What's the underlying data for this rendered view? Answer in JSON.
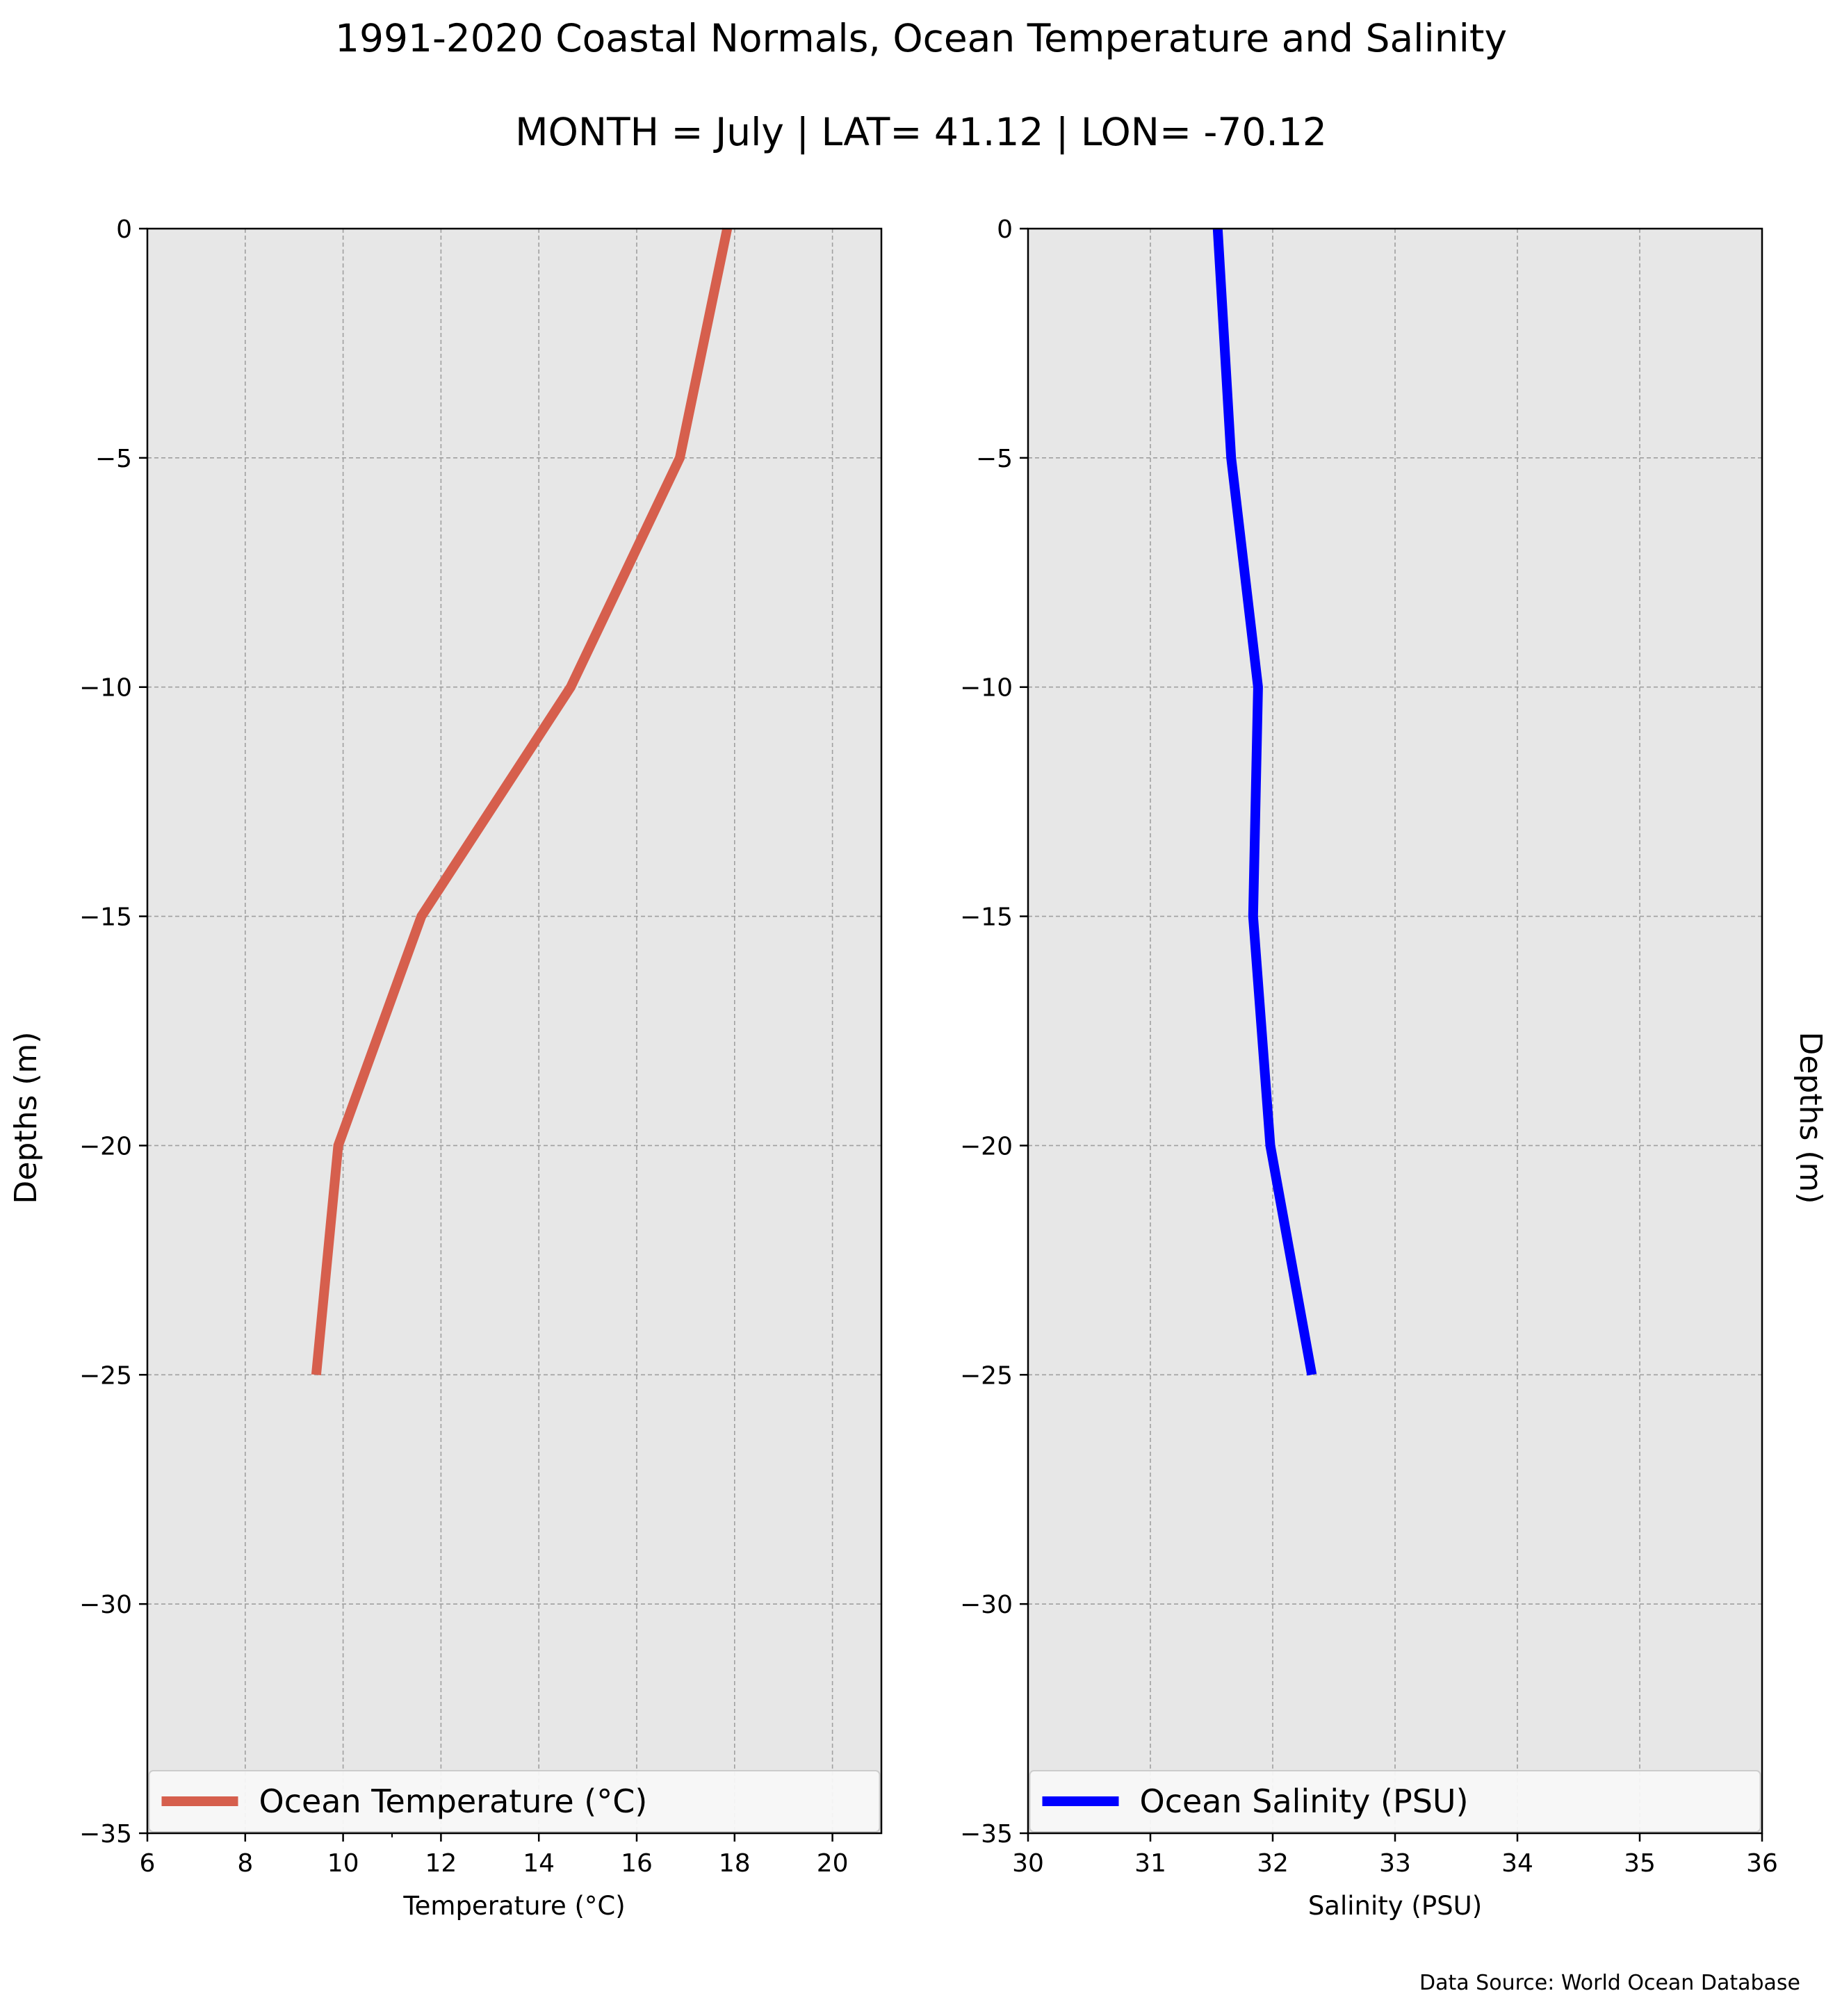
{
  "figure": {
    "title": "1991-2020 Coastal Normals, Ocean Temperature and Salinity",
    "subtitle": "MONTH = July | LAT= 41.12 | LON= -70.12",
    "source": "Data Source: World Ocean Database"
  },
  "chart_data": [
    {
      "type": "line",
      "xlabel": "Temperature ($^\\circ$C)",
      "xlabel_display": "Temperature (°C)",
      "ylabel": "Depths (m)",
      "xlim": [
        6,
        21
      ],
      "ylim": [
        -35,
        0
      ],
      "xticks": [
        6,
        8,
        10,
        12,
        14,
        16,
        18,
        20
      ],
      "xtick_labels": [
        "6",
        "8",
        "10",
        "12",
        "14",
        "16",
        "18",
        "20"
      ],
      "yticks": [
        0,
        -5,
        -10,
        -15,
        -20,
        -25,
        -30,
        -35
      ],
      "ytick_labels": [
        "0",
        "−5",
        "−10",
        "−15",
        "−20",
        "−25",
        "−30",
        "−35"
      ],
      "grid": true,
      "background": "#e7e7e7",
      "legend_position": "lower center",
      "series": [
        {
          "name": "Ocean Temperature ($^\\circ$C)",
          "legend_label": "Ocean Temperature (°C)",
          "color": "#d65f4d",
          "x": [
            17.85,
            16.88,
            14.65,
            11.6,
            9.9,
            9.45
          ],
          "y": [
            0,
            -5,
            -10,
            -15,
            -20,
            -25
          ]
        }
      ]
    },
    {
      "type": "line",
      "xlabel": "Salinity (PSU)",
      "ylabel": "Depths (m)",
      "xlim": [
        30,
        36
      ],
      "ylim": [
        -35,
        0
      ],
      "xticks": [
        30,
        31,
        32,
        33,
        34,
        35,
        36
      ],
      "xtick_labels": [
        "30",
        "31",
        "32",
        "33",
        "34",
        "35",
        "36"
      ],
      "yticks": [
        0,
        -5,
        -10,
        -15,
        -20,
        -25,
        -30,
        -35
      ],
      "ytick_labels": [
        "0",
        "−5",
        "−10",
        "−15",
        "−20",
        "−25",
        "−30",
        "−35"
      ],
      "grid": true,
      "background": "#e7e7e7",
      "legend_position": "lower center",
      "series": [
        {
          "name": "Ocean Salinity (PSU)",
          "color": "#0000ff",
          "x": [
            31.55,
            31.66,
            31.88,
            31.84,
            31.98,
            32.32
          ],
          "y": [
            0,
            -5,
            -10,
            -15,
            -20,
            -25
          ]
        }
      ]
    }
  ]
}
